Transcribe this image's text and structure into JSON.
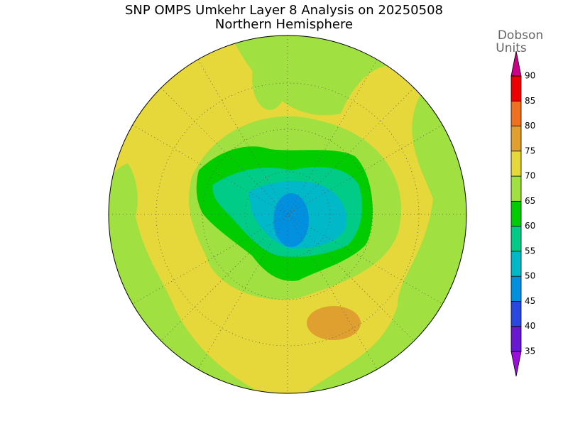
{
  "title": "SNP OMPS Umkehr Layer 8 Analysis on 20250508",
  "subtitle": "Northern Hemisphere",
  "colorbar": {
    "unit_label": [
      "Dobson",
      "Units"
    ],
    "ticks": [
      90,
      85,
      80,
      75,
      70,
      65,
      60,
      55,
      50,
      45,
      40,
      35
    ],
    "colors": [
      "#ee0000",
      "#ee7020",
      "#e0a030",
      "#e6d83a",
      "#a0e040",
      "#00cc00",
      "#00cc88",
      "#00b8c8",
      "#0090e0",
      "#2848e0",
      "#6818d0"
    ],
    "over_color": "#cc0088",
    "under_color": "#9a10d8"
  }
}
